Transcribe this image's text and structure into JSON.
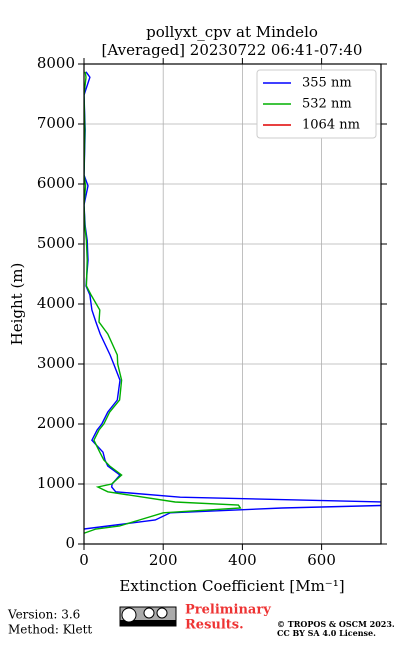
{
  "chart_data": {
    "type": "line",
    "title": [
      "pollyxt_cpv at Mindelo",
      "[Averaged] 20230722 06:41-07:40"
    ],
    "x_label": "Extinction Coefficient [Mm⁻¹]",
    "y_label": "Height (m)",
    "heights": [
      180,
      250,
      300,
      400,
      520,
      600,
      650,
      700,
      780,
      870,
      950,
      1000,
      1150,
      1300,
      1400,
      1530,
      1730,
      1900,
      2000,
      2200,
      2400,
      2730,
      3000,
      3150,
      3500,
      3700,
      3900,
      4150,
      4300,
      4730,
      5060,
      5300,
      5650,
      5970,
      6150,
      6900,
      7480,
      7780,
      7870
    ],
    "series": [
      {
        "name": "355 nm",
        "color": "#0000ff",
        "values": [
          null,
          0,
          60,
          180,
          218,
          500,
          800,
          760,
          243,
          80,
          70,
          71,
          91,
          60,
          53,
          48,
          20,
          33,
          45,
          60,
          84,
          91,
          75,
          66,
          41,
          30,
          20,
          15,
          5,
          10,
          8,
          3,
          0,
          10,
          0,
          3,
          0,
          15,
          5
        ]
      },
      {
        "name": "532 nm",
        "color": "#00b000",
        "values": [
          0,
          30,
          90,
          140,
          200,
          395,
          390,
          230,
          150,
          60,
          35,
          70,
          95,
          65,
          50,
          40,
          25,
          38,
          50,
          65,
          90,
          95,
          85,
          84,
          60,
          38,
          40,
          18,
          6,
          8,
          6,
          2,
          0,
          4,
          0,
          2,
          0,
          5,
          3
        ]
      },
      {
        "name": "1064 nm",
        "color": "#e00000",
        "values": [
          null,
          null,
          null,
          null,
          null,
          null,
          null,
          null,
          null,
          null,
          null,
          null,
          null,
          null,
          null,
          null,
          null,
          null,
          null,
          null,
          null,
          null,
          null,
          null,
          null,
          null,
          null,
          null,
          null,
          null,
          null,
          null,
          null,
          null,
          null,
          null,
          null,
          null,
          null
        ]
      }
    ],
    "xlim": [
      0,
      750
    ],
    "xticks": [
      0,
      200,
      400,
      600
    ],
    "ylim": [
      0,
      8000
    ],
    "yticks": [
      0,
      1000,
      2000,
      3000,
      4000,
      5000,
      6000,
      7000,
      8000
    ],
    "grid": true,
    "legend": "upper right",
    "footer": {
      "version": "Version: 3.6",
      "method": "Method: Klett",
      "preliminary": [
        "Preliminary",
        "Results."
      ],
      "copyright": [
        "© TROPOS & OSCM 2023.",
        "CC BY SA 4.0 License."
      ]
    }
  }
}
